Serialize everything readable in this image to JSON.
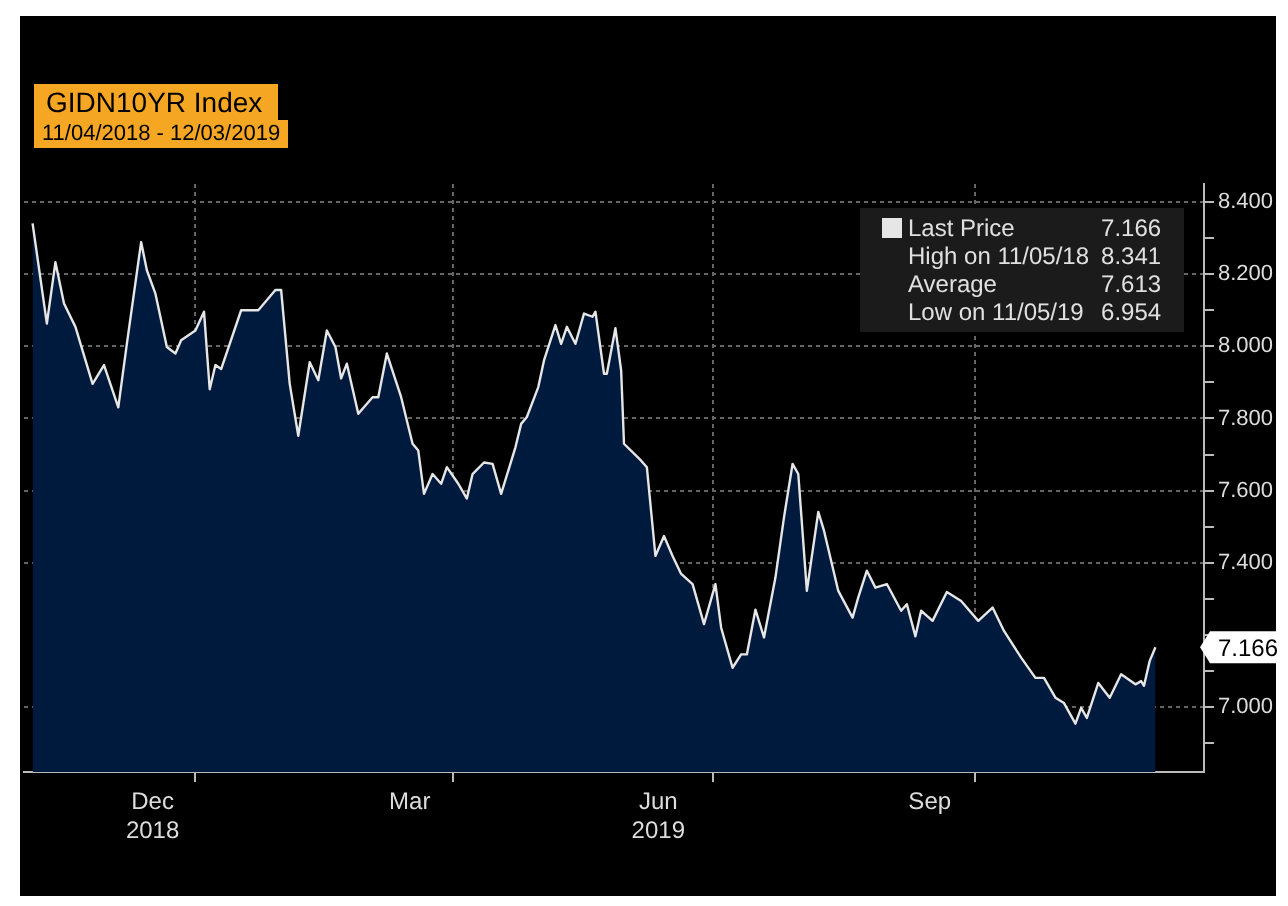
{
  "chart_data": {
    "type": "area",
    "title": "GIDN10YR Index",
    "subtitle": "11/04/2018 - 12/03/2019",
    "x": [
      "2018-11-05",
      "2018-11-10",
      "2018-11-13",
      "2018-11-16",
      "2018-11-20",
      "2018-11-26",
      "2018-11-30",
      "2018-12-05",
      "2018-12-08",
      "2018-12-13",
      "2018-12-15",
      "2018-12-18",
      "2018-12-22",
      "2018-12-25",
      "2018-12-27",
      "2019-01-01",
      "2019-01-04",
      "2019-01-06",
      "2019-01-08",
      "2019-01-10",
      "2019-01-17",
      "2019-01-23",
      "2019-01-29",
      "2019-01-31",
      "2019-02-03",
      "2019-02-06",
      "2019-02-10",
      "2019-02-13",
      "2019-02-16",
      "2019-02-19",
      "2019-02-21",
      "2019-02-23",
      "2019-02-27",
      "2019-03-04",
      "2019-03-06",
      "2019-03-09",
      "2019-03-14",
      "2019-03-18",
      "2019-03-20",
      "2019-03-22",
      "2019-03-25",
      "2019-03-28",
      "2019-03-30",
      "2019-04-03",
      "2019-04-06",
      "2019-04-08",
      "2019-04-12",
      "2019-04-15",
      "2019-04-18",
      "2019-04-23",
      "2019-04-25",
      "2019-04-27",
      "2019-05-01",
      "2019-05-03",
      "2019-05-07",
      "2019-05-09",
      "2019-05-11",
      "2019-05-14",
      "2019-05-17",
      "2019-05-20",
      "2019-05-21",
      "2019-05-24",
      "2019-05-25",
      "2019-05-28",
      "2019-05-30",
      "2019-05-31",
      "2019-06-06",
      "2019-06-08",
      "2019-06-11",
      "2019-06-14",
      "2019-06-17",
      "2019-06-20",
      "2019-06-24",
      "2019-06-28",
      "2019-07-02",
      "2019-07-04",
      "2019-07-08",
      "2019-07-11",
      "2019-07-13",
      "2019-07-16",
      "2019-07-19",
      "2019-07-23",
      "2019-07-26",
      "2019-07-29",
      "2019-07-31",
      "2019-08-03",
      "2019-08-07",
      "2019-08-09",
      "2019-08-14",
      "2019-08-19",
      "2019-08-21",
      "2019-08-24",
      "2019-08-27",
      "2019-08-31",
      "2019-09-05",
      "2019-09-07",
      "2019-09-10",
      "2019-09-12",
      "2019-09-16",
      "2019-09-21",
      "2019-09-26",
      "2019-10-02",
      "2019-10-07",
      "2019-10-11",
      "2019-10-17",
      "2019-10-22",
      "2019-10-25",
      "2019-10-29",
      "2019-11-01",
      "2019-11-05",
      "2019-11-07",
      "2019-11-09",
      "2019-11-13",
      "2019-11-17",
      "2019-11-21",
      "2019-11-26",
      "2019-11-28",
      "2019-11-29",
      "2019-12-01",
      "2019-12-03"
    ],
    "series": [
      {
        "name": "Last Price",
        "color": "#e6e6e6",
        "values": [
          8.341,
          8.063,
          8.233,
          8.119,
          8.054,
          7.896,
          7.948,
          7.831,
          8.007,
          8.289,
          8.211,
          8.146,
          7.998,
          7.98,
          8.017,
          8.044,
          8.096,
          7.881,
          7.948,
          7.937,
          8.1,
          8.1,
          8.156,
          8.156,
          7.896,
          7.752,
          7.956,
          7.906,
          8.044,
          7.998,
          7.911,
          7.952,
          7.813,
          7.859,
          7.859,
          7.98,
          7.859,
          7.73,
          7.711,
          7.591,
          7.646,
          7.619,
          7.665,
          7.619,
          7.578,
          7.646,
          7.678,
          7.674,
          7.591,
          7.72,
          7.785,
          7.804,
          7.887,
          7.961,
          8.059,
          8.007,
          8.054,
          8.007,
          8.091,
          8.082,
          8.096,
          7.924,
          7.924,
          8.05,
          7.933,
          7.73,
          7.683,
          7.665,
          7.419,
          7.474,
          7.419,
          7.369,
          7.341,
          7.23,
          7.341,
          7.22,
          7.109,
          7.146,
          7.146,
          7.27,
          7.193,
          7.359,
          7.526,
          7.674,
          7.646,
          7.322,
          7.541,
          7.489,
          7.322,
          7.248,
          7.304,
          7.378,
          7.331,
          7.341,
          7.267,
          7.285,
          7.196,
          7.267,
          7.239,
          7.319,
          7.294,
          7.239,
          7.276,
          7.211,
          7.137,
          7.081,
          7.081,
          7.026,
          7.011,
          6.954,
          6.998,
          6.97,
          7.067,
          7.026,
          7.091,
          7.063,
          7.072,
          7.059,
          7.128,
          7.166
        ]
      }
    ],
    "xlim": [
      "2018-11-02",
      "2019-12-20"
    ],
    "xticks": [
      {
        "value": "2019-01-01",
        "label": null
      },
      {
        "value": "2019-04-01",
        "label": null
      },
      {
        "value": "2019-07-01",
        "label": null
      },
      {
        "value": "2019-10-01",
        "label": null
      },
      {
        "value": "2018-12-17",
        "label": "Dec\n2018"
      },
      {
        "value": "2019-03-17",
        "label": "Mar"
      },
      {
        "value": "2019-06-12",
        "label": "Jun\n2019"
      },
      {
        "value": "2019-09-15",
        "label": "Sep"
      }
    ],
    "ylim": [
      6.82,
      8.45
    ],
    "yticks": [
      {
        "value": 6.9,
        "label": null
      },
      {
        "value": 7.0,
        "label": "7.000"
      },
      {
        "value": 7.1,
        "label": null
      },
      {
        "value": 7.2,
        "label": null
      },
      {
        "value": 7.3,
        "label": null
      },
      {
        "value": 7.4,
        "label": "7.400"
      },
      {
        "value": 7.5,
        "label": null
      },
      {
        "value": 7.6,
        "label": "7.600"
      },
      {
        "value": 7.7,
        "label": null
      },
      {
        "value": 7.8,
        "label": "7.800"
      },
      {
        "value": 7.9,
        "label": null
      },
      {
        "value": 8.0,
        "label": "8.000"
      },
      {
        "value": 8.1,
        "label": null
      },
      {
        "value": 8.2,
        "label": "8.200"
      },
      {
        "value": 8.3,
        "label": null
      },
      {
        "value": 8.4,
        "label": "8.400"
      }
    ],
    "grid": true,
    "legend": "top right",
    "annotations": [
      {
        "text": "7.166",
        "x": "2019-12-03",
        "y": 7.166
      },
      "7.166",
      "High on 11/05/18 8.341",
      "Average 7.613",
      "Low on 11/05/19 6.954"
    ]
  }
}
